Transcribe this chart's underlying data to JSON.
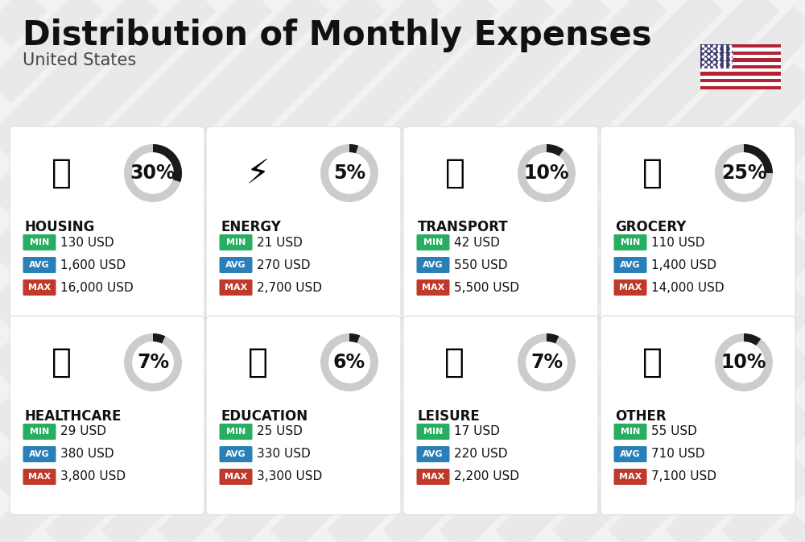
{
  "title": "Distribution of Monthly Expenses",
  "subtitle": "United States",
  "background_color": "#f2f2f2",
  "categories": [
    {
      "name": "HOUSING",
      "percent": 30,
      "min_val": "130 USD",
      "avg_val": "1,600 USD",
      "max_val": "16,000 USD",
      "row": 0,
      "col": 0
    },
    {
      "name": "ENERGY",
      "percent": 5,
      "min_val": "21 USD",
      "avg_val": "270 USD",
      "max_val": "2,700 USD",
      "row": 0,
      "col": 1
    },
    {
      "name": "TRANSPORT",
      "percent": 10,
      "min_val": "42 USD",
      "avg_val": "550 USD",
      "max_val": "5,500 USD",
      "row": 0,
      "col": 2
    },
    {
      "name": "GROCERY",
      "percent": 25,
      "min_val": "110 USD",
      "avg_val": "1,400 USD",
      "max_val": "14,000 USD",
      "row": 0,
      "col": 3
    },
    {
      "name": "HEALTHCARE",
      "percent": 7,
      "min_val": "29 USD",
      "avg_val": "380 USD",
      "max_val": "3,800 USD",
      "row": 1,
      "col": 0
    },
    {
      "name": "EDUCATION",
      "percent": 6,
      "min_val": "25 USD",
      "avg_val": "330 USD",
      "max_val": "3,300 USD",
      "row": 1,
      "col": 1
    },
    {
      "name": "LEISURE",
      "percent": 7,
      "min_val": "17 USD",
      "avg_val": "220 USD",
      "max_val": "2,200 USD",
      "row": 1,
      "col": 2
    },
    {
      "name": "OTHER",
      "percent": 10,
      "min_val": "55 USD",
      "avg_val": "710 USD",
      "max_val": "7,100 USD",
      "row": 1,
      "col": 3
    }
  ],
  "min_color": "#27ae60",
  "avg_color": "#2980b9",
  "max_color": "#c0392b",
  "title_color": "#111111",
  "subtitle_color": "#444444",
  "value_color": "#111111",
  "circle_bg_color": "#cccccc",
  "circle_fill_color": "#1a1a1a",
  "stripe_color": "#e0e0e0",
  "title_fontsize": 30,
  "subtitle_fontsize": 15,
  "cat_fontsize": 12,
  "val_fontsize": 11,
  "pct_fontsize": 17,
  "card_cols": 4,
  "card_rows": 2
}
